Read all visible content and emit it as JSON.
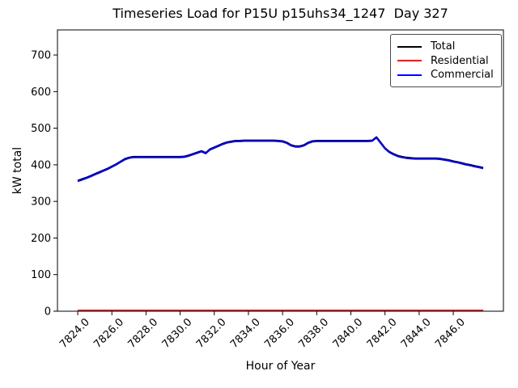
{
  "figure": {
    "title": "Timeseries Load for P15U p15uhs34_1247  Day 327",
    "xlabel": "Hour of Year",
    "ylabel": "kW total",
    "background_color": "#ffffff",
    "axes_edge_color": "#000000"
  },
  "legend": {
    "position": "upper right",
    "entries": [
      {
        "label": "Total",
        "color": "#000000"
      },
      {
        "label": "Residential",
        "color": "#ff0000"
      },
      {
        "label": "Commercial",
        "color": "#0000ff"
      }
    ]
  },
  "chart_data": {
    "type": "line",
    "title": "Timeseries Load for P15U p15uhs34_1247  Day 327",
    "xlabel": "Hour of Year",
    "ylabel": "kW total",
    "grid": false,
    "legend_position": "upper right",
    "xlim": [
      7822.8125,
      7848.9375
    ],
    "ylim": [
      0,
      768.6
    ],
    "x_ticks": [
      7824,
      7826,
      7828,
      7830,
      7832,
      7834,
      7836,
      7838,
      7840,
      7842,
      7844,
      7846
    ],
    "x_tick_labels": [
      "7824.0",
      "7826.0",
      "7828.0",
      "7830.0",
      "7832.0",
      "7834.0",
      "7836.0",
      "7838.0",
      "7840.0",
      "7842.0",
      "7844.0",
      "7846.0"
    ],
    "y_ticks": [
      0,
      100,
      200,
      300,
      400,
      500,
      600,
      700
    ],
    "y_tick_labels": [
      "0",
      "100",
      "200",
      "300",
      "400",
      "500",
      "600",
      "700"
    ],
    "x": [
      7824.0,
      7824.25,
      7824.5,
      7824.75,
      7825.0,
      7825.25,
      7825.5,
      7825.75,
      7826.0,
      7826.25,
      7826.5,
      7826.75,
      7827.0,
      7827.25,
      7827.5,
      7827.75,
      7828.0,
      7828.25,
      7828.5,
      7828.75,
      7829.0,
      7829.25,
      7829.5,
      7829.75,
      7830.0,
      7830.25,
      7830.5,
      7830.75,
      7831.0,
      7831.25,
      7831.5,
      7831.75,
      7832.0,
      7832.25,
      7832.5,
      7832.75,
      7833.0,
      7833.25,
      7833.5,
      7833.75,
      7834.0,
      7834.25,
      7834.5,
      7834.75,
      7835.0,
      7835.25,
      7835.5,
      7835.75,
      7836.0,
      7836.25,
      7836.5,
      7836.75,
      7837.0,
      7837.25,
      7837.5,
      7837.75,
      7838.0,
      7838.25,
      7838.5,
      7838.75,
      7839.0,
      7839.25,
      7839.5,
      7839.75,
      7840.0,
      7840.25,
      7840.5,
      7840.75,
      7841.0,
      7841.25,
      7841.5,
      7841.75,
      7842.0,
      7842.25,
      7842.5,
      7842.75,
      7843.0,
      7843.25,
      7843.5,
      7843.75,
      7844.0,
      7844.25,
      7844.5,
      7844.75,
      7845.0,
      7845.25,
      7845.5,
      7845.75,
      7846.0,
      7846.25,
      7846.5,
      7846.75,
      7847.0,
      7847.25,
      7847.5,
      7847.75
    ],
    "series": [
      {
        "name": "Total",
        "color": "#000000",
        "linewidth": 2,
        "values": [
          357,
          361,
          365,
          370,
          375,
          380,
          385,
          390,
          396,
          402,
          409,
          416,
          420,
          422,
          422,
          422,
          422,
          422,
          422,
          422,
          422,
          422,
          422,
          422,
          422,
          423,
          426,
          430,
          434,
          438,
          433,
          443,
          448,
          453,
          458,
          462,
          464,
          466,
          466,
          467,
          467,
          467,
          467,
          467,
          467,
          467,
          467,
          466,
          465,
          461,
          454,
          451,
          451,
          454,
          461,
          465,
          466,
          466,
          466,
          466,
          466,
          466,
          466,
          466,
          466,
          466,
          466,
          466,
          466,
          467,
          476,
          461,
          446,
          436,
          430,
          425,
          422,
          420,
          419,
          418,
          418,
          418,
          418,
          418,
          418,
          417,
          415,
          413,
          410,
          408,
          405,
          402,
          400,
          397,
          395,
          392
        ]
      },
      {
        "name": "Residential",
        "color": "#ff0000",
        "linewidth": 2,
        "values": [
          2,
          2,
          2,
          2,
          2,
          2,
          2,
          2,
          2,
          2,
          2,
          2,
          2,
          2,
          2,
          2,
          2,
          2,
          2,
          2,
          2,
          2,
          2,
          2,
          2,
          2,
          2,
          2,
          2,
          2,
          2,
          2,
          2,
          2,
          2,
          2,
          2,
          2,
          2,
          2,
          2,
          2,
          2,
          2,
          2,
          2,
          2,
          2,
          2,
          2,
          2,
          2,
          2,
          2,
          2,
          2,
          2,
          2,
          2,
          2,
          2,
          2,
          2,
          2,
          2,
          2,
          2,
          2,
          2,
          2,
          2,
          2,
          2,
          2,
          2,
          2,
          2,
          2,
          2,
          2,
          2,
          2,
          2,
          2,
          2,
          2,
          2,
          2,
          2,
          2,
          2,
          2,
          2,
          2,
          2,
          2
        ]
      },
      {
        "name": "Commercial",
        "color": "#0000ff",
        "linewidth": 2,
        "values": [
          355,
          359,
          363,
          368,
          373,
          378,
          383,
          388,
          394,
          400,
          407,
          414,
          418,
          420,
          420,
          420,
          420,
          420,
          420,
          420,
          420,
          420,
          420,
          420,
          420,
          421,
          424,
          428,
          432,
          436,
          431,
          441,
          446,
          451,
          456,
          460,
          462,
          464,
          464,
          465,
          465,
          465,
          465,
          465,
          465,
          465,
          465,
          464,
          463,
          459,
          452,
          449,
          449,
          452,
          459,
          463,
          464,
          464,
          464,
          464,
          464,
          464,
          464,
          464,
          464,
          464,
          464,
          464,
          464,
          465,
          474,
          459,
          444,
          434,
          428,
          423,
          420,
          418,
          417,
          416,
          416,
          416,
          416,
          416,
          416,
          415,
          413,
          411,
          408,
          406,
          403,
          400,
          398,
          395,
          393,
          390
        ]
      }
    ]
  }
}
